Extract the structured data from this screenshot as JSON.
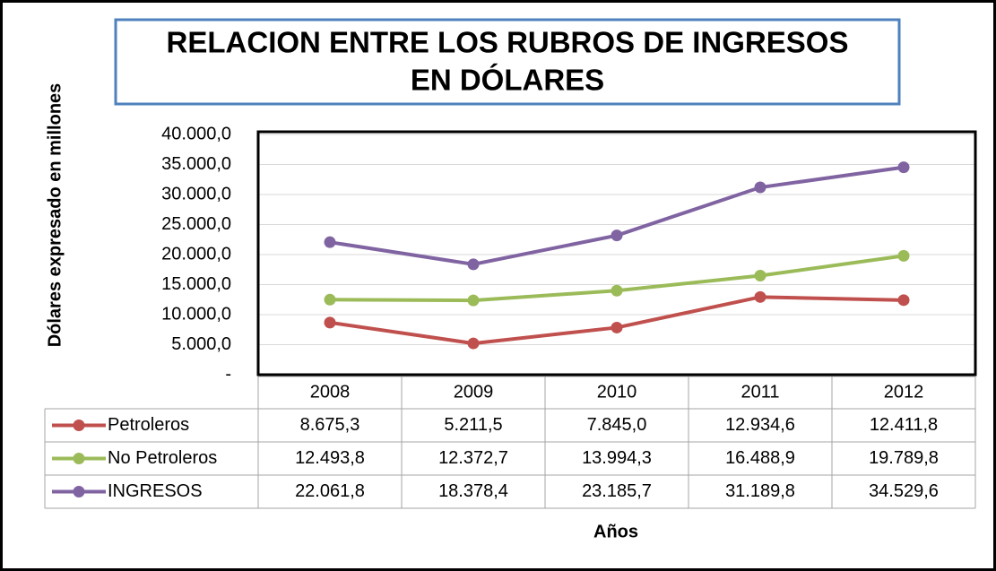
{
  "chart_data": {
    "type": "line",
    "title": [
      "RELACION ENTRE LOS RUBROS DE INGRESOS",
      "EN DÓLARES"
    ],
    "y_label": "Dólares expresado en millones",
    "x_label": "Años",
    "categories": [
      "2008",
      "2009",
      "2010",
      "2011",
      "2012"
    ],
    "series": [
      {
        "name": "Petroleros",
        "color": "#c0504d",
        "values": [
          8675.3,
          5211.5,
          7845.0,
          12934.6,
          12411.8
        ],
        "value_labels": [
          "8.675,3",
          "5.211,5",
          "7.845,0",
          "12.934,6",
          "12.411,8"
        ]
      },
      {
        "name": "No Petroleros",
        "color": "#9bbb59",
        "values": [
          12493.8,
          12372.7,
          13994.3,
          16488.9,
          19789.8
        ],
        "value_labels": [
          "12.493,8",
          "12.372,7",
          "13.994,3",
          "16.488,9",
          "19.789,8"
        ]
      },
      {
        "name": "INGRESOS",
        "color": "#8064a2",
        "values": [
          22061.8,
          18378.4,
          23185.7,
          31189.8,
          34529.6
        ],
        "value_labels": [
          "22.061,8",
          "18.378,4",
          "23.185,7",
          "31.189,8",
          "34.529,6"
        ]
      }
    ],
    "ylim": [
      0,
      40000
    ],
    "yticks": [
      {
        "value": 0,
        "label": "-"
      },
      {
        "value": 5000,
        "label": "5.000,0"
      },
      {
        "value": 10000,
        "label": "10.000,0"
      },
      {
        "value": 15000,
        "label": "15.000,0"
      },
      {
        "value": 20000,
        "label": "20.000,0"
      },
      {
        "value": 25000,
        "label": "25.000,0"
      },
      {
        "value": 30000,
        "label": "30.000,0"
      },
      {
        "value": 35000,
        "label": "35.000,0"
      },
      {
        "value": 40000,
        "label": "40.000,0"
      }
    ],
    "grid": true
  }
}
